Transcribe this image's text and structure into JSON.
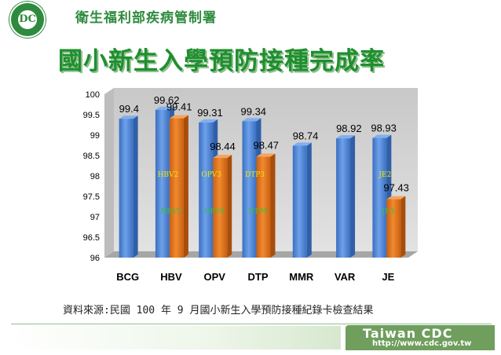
{
  "header": {
    "org_name": "衛生福利部疾病管制署",
    "logo_text": "DC",
    "logo_icon": "cdc-seal-icon"
  },
  "title": "國小新生入學預防接種完成率",
  "source_note": "資料來源:民國 100 年 9 月國小新生入學預防接種紀錄卡檢查結果",
  "footer": {
    "brand": "Taiwan CDC",
    "url": "http://www.cdc.gov.tw"
  },
  "colors": {
    "blue_series": "#4f86d6",
    "orange_series": "#e8731a",
    "plot_background": "#d9d9d9",
    "title_green": "#1f8f2e"
  },
  "chart_data": {
    "type": "bar",
    "categories": [
      "BCG",
      "HBV",
      "OPV",
      "DTP",
      "MMR",
      "VAR",
      "JE"
    ],
    "series": [
      {
        "values": [
          99.4,
          99.62,
          99.31,
          99.34,
          98.74,
          98.92,
          98.93
        ]
      },
      {
        "values": [
          null,
          99.41,
          98.44,
          98.47,
          null,
          null,
          97.43
        ]
      }
    ],
    "value_labels": {
      "first": [
        "99.4",
        "99.62",
        "99.31",
        "99.34",
        "98.74",
        "98.92",
        "98.93"
      ],
      "second": [
        "",
        "99.41",
        "98.44",
        "98.47",
        "",
        "",
        "97.43"
      ]
    },
    "dose_annotations": [
      {
        "category": "HBV",
        "upper": "HBV2",
        "lower": "HBV3"
      },
      {
        "category": "OPV",
        "upper": "OPV3",
        "lower": "OPV4"
      },
      {
        "category": "DTP",
        "upper": "DTP3",
        "lower": "DTP4"
      },
      {
        "category": "JE",
        "upper": "JE2",
        "lower": "JE3"
      }
    ],
    "y_ticks": [
      "100",
      "99.5",
      "99",
      "98.5",
      "98",
      "97.5",
      "97",
      "96.5",
      "96"
    ],
    "ylim": [
      96,
      100
    ],
    "grid": false,
    "legend": "none"
  }
}
